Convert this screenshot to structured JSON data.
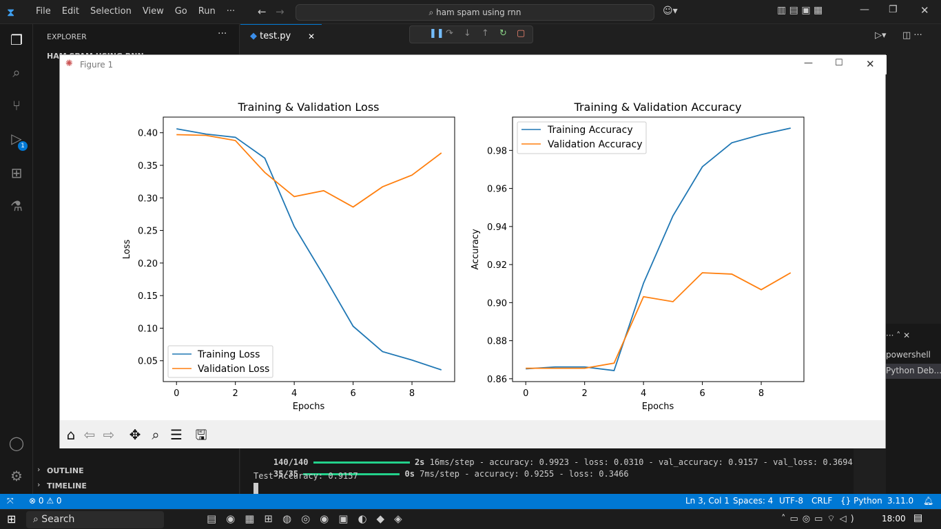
{
  "window": {
    "menu": [
      "File",
      "Edit",
      "Selection",
      "View",
      "Go",
      "Run",
      "···"
    ],
    "search_text": "ham spam using rnn"
  },
  "sidebar": {
    "title": "EXPLORER",
    "folder": "HAM SPAM USING RNN",
    "outline": "OUTLINE",
    "timeline": "TIMELINE"
  },
  "activity_bar": {
    "debug_badge": "1"
  },
  "editor": {
    "tab_label": "test.py"
  },
  "panel": {
    "terminals": [
      "powershell",
      "Python Deb..."
    ]
  },
  "terminal": {
    "line1_progress": "140/140",
    "line1_time": "2s",
    "line1_rest": " 16ms/step - accuracy: 0.9923 - loss: 0.0310 - val_accuracy: 0.9157 - val_loss: 0.3694",
    "line2_progress": "35/35",
    "line2_time": "0s",
    "line2_rest": " 7ms/step - accuracy: 0.9255 - loss: 0.3466",
    "line3": "Test Accuracy: 0.9157"
  },
  "statusbar": {
    "problems": "0",
    "warnings": "0",
    "position": "Ln 3, Col 1",
    "spaces": "Spaces: 4",
    "encoding": "UTF-8",
    "eol": "CRLF",
    "language": "Python",
    "version": "3.11.0"
  },
  "taskbar": {
    "search_label": "Search",
    "clock": "18:00"
  },
  "figure": {
    "title": "Figure 1"
  },
  "chart_data": [
    {
      "type": "line",
      "title": "Training & Validation Loss",
      "xlabel": "Epochs",
      "ylabel": "Loss",
      "x": [
        0,
        1,
        2,
        3,
        4,
        5,
        6,
        7,
        8,
        9
      ],
      "xticks": [
        "0",
        "2",
        "4",
        "6",
        "8"
      ],
      "yticks": [
        "0.05",
        "0.10",
        "0.15",
        "0.20",
        "0.25",
        "0.30",
        "0.35",
        "0.40"
      ],
      "xlim": [
        -0.45,
        9.45
      ],
      "ylim": [
        0.018,
        0.424
      ],
      "legend": "lower-left",
      "series": [
        {
          "name": "Training Loss",
          "color": "#1f77b4",
          "values": [
            0.406,
            0.398,
            0.393,
            0.361,
            0.256,
            0.181,
            0.103,
            0.064,
            0.051,
            0.036
          ]
        },
        {
          "name": "Validation Loss",
          "color": "#ff7f0e",
          "values": [
            0.397,
            0.396,
            0.388,
            0.339,
            0.302,
            0.311,
            0.286,
            0.317,
            0.335,
            0.369
          ]
        }
      ]
    },
    {
      "type": "line",
      "title": "Training & Validation Accuracy",
      "xlabel": "Epochs",
      "ylabel": "Accuracy",
      "x": [
        0,
        1,
        2,
        3,
        4,
        5,
        6,
        7,
        8,
        9
      ],
      "xticks": [
        "0",
        "2",
        "4",
        "6",
        "8"
      ],
      "yticks": [
        "0.86",
        "0.88",
        "0.90",
        "0.92",
        "0.94",
        "0.96",
        "0.98"
      ],
      "xlim": [
        -0.45,
        9.45
      ],
      "ylim": [
        0.8585,
        0.9975
      ],
      "legend": "top-left",
      "series": [
        {
          "name": "Training Accuracy",
          "color": "#1f77b4",
          "values": [
            0.8652,
            0.8662,
            0.8662,
            0.8643,
            0.9102,
            0.9456,
            0.9714,
            0.984,
            0.9883,
            0.9917
          ]
        },
        {
          "name": "Validation Accuracy",
          "color": "#ff7f0e",
          "values": [
            0.8655,
            0.8655,
            0.8655,
            0.8682,
            0.9031,
            0.9005,
            0.9157,
            0.915,
            0.9068,
            0.9157
          ]
        }
      ]
    }
  ]
}
